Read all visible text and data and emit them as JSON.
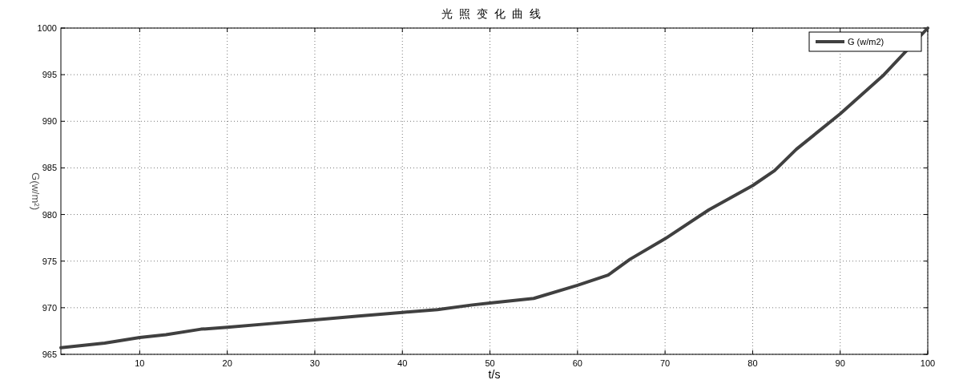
{
  "chart_data": {
    "type": "line",
    "title": "光照变化曲线",
    "xlabel": "t/s",
    "ylabel": "G(w/m²)",
    "x": [
      1,
      6,
      10,
      13,
      17,
      20,
      25,
      30,
      35,
      40,
      44,
      48,
      50,
      55,
      60,
      63.5,
      66,
      70,
      75,
      80,
      82.5,
      85,
      90,
      95,
      100
    ],
    "series": [
      {
        "name": "G (w/m2)",
        "color": "#404040",
        "values": [
          965.7,
          966.2,
          966.8,
          967.1,
          967.7,
          967.9,
          968.3,
          968.7,
          969.1,
          969.5,
          969.8,
          970.3,
          970.5,
          971.0,
          972.4,
          973.5,
          975.2,
          977.4,
          980.5,
          983.1,
          984.7,
          987.0,
          990.8,
          995.0,
          1000
        ]
      }
    ],
    "xlim": [
      1,
      100
    ],
    "ylim": [
      965,
      1000
    ],
    "xticks": [
      10,
      20,
      30,
      40,
      50,
      60,
      70,
      80,
      90,
      100
    ],
    "yticks": [
      965,
      970,
      975,
      980,
      985,
      990,
      995,
      1000
    ],
    "grid": true,
    "legend": "top right"
  }
}
